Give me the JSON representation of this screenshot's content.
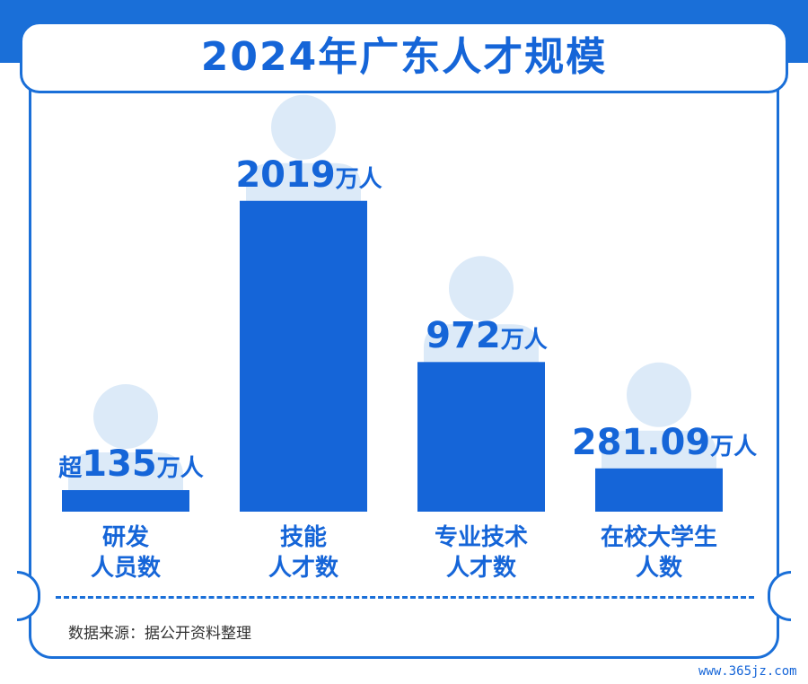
{
  "title": "2024年广东人才规模",
  "colors": {
    "bar": "#1565d8",
    "accent": "#1a6fd8",
    "avatar": "#dceaf8"
  },
  "chart_data": {
    "type": "bar",
    "title": "2024年广东人才规模",
    "unit": "万人",
    "categories": [
      [
        "研发",
        "人员数"
      ],
      [
        "技能",
        "人才数"
      ],
      [
        "专业技术",
        "人才数"
      ],
      [
        "在校大学生",
        "人数"
      ]
    ],
    "values": [
      135,
      2019,
      972,
      281.09
    ],
    "labels": [
      {
        "prefix": "超",
        "value": "135",
        "unit": "万人"
      },
      {
        "prefix": "",
        "value": "2019",
        "unit": "万人"
      },
      {
        "prefix": "",
        "value": "972",
        "unit": "万人"
      },
      {
        "prefix": "",
        "value": "281.09",
        "unit": "万人"
      }
    ],
    "decoration": "avatar-icon behind each bar"
  },
  "source": "数据来源：据公开资料整理",
  "watermark": "www.365jz.com"
}
